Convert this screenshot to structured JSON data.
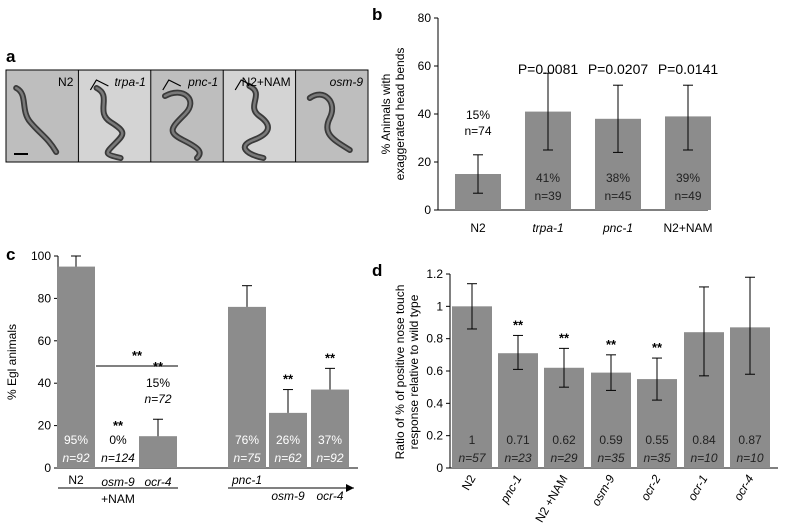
{
  "panel_a": {
    "letter": "a",
    "labels": [
      "N2",
      "trpa-1",
      "pnc-1",
      "N2+NAM",
      "osm-9"
    ],
    "italic": [
      false,
      true,
      true,
      false,
      true
    ]
  },
  "chart_data": [
    {
      "panel": "b",
      "type": "bar",
      "ylabel": "% Animals with exaggerated head bends",
      "ylabel_lines": [
        "% Animals with",
        "exaggerated head bends"
      ],
      "ylim": [
        0,
        80
      ],
      "yticks": [
        0,
        20,
        40,
        60,
        80
      ],
      "categories": [
        "N2",
        "trpa-1",
        "pnc-1",
        "N2+NAM"
      ],
      "italic": [
        false,
        true,
        true,
        false
      ],
      "values": [
        15,
        41,
        38,
        39
      ],
      "err_low": [
        7,
        25,
        24,
        25
      ],
      "err_high": [
        23,
        57,
        52,
        52
      ],
      "labels_pct": [
        "15%",
        "41%",
        "38%",
        "39%"
      ],
      "labels_n": [
        "n=74",
        "n=39",
        "n=45",
        "n=49"
      ],
      "label_inside": [
        false,
        true,
        true,
        true
      ],
      "pvalues": [
        "",
        "P=0.0081",
        "P=0.0207",
        "P=0.0141"
      ]
    },
    {
      "panel": "c",
      "type": "bar",
      "ylabel": "% Egl animals",
      "ylim": [
        0,
        100
      ],
      "yticks": [
        0,
        20,
        40,
        60,
        80,
        100
      ],
      "categories": [
        "N2",
        "osm-9",
        "ocr-4",
        "pnc-1",
        "osm-9",
        "ocr-4"
      ],
      "italic": [
        false,
        true,
        true,
        true,
        true,
        true
      ],
      "values": [
        95,
        0,
        15,
        76,
        26,
        37
      ],
      "err_low": [
        null,
        null,
        null,
        null,
        null,
        null
      ],
      "err_high": [
        100,
        null,
        23,
        86,
        37,
        47
      ],
      "labels_pct": [
        "95%",
        "0%",
        "15%",
        "76%",
        "26%",
        "37%"
      ],
      "labels_n": [
        "n=92",
        "n=124",
        "n=72",
        "n=75",
        "n=62",
        "n=92"
      ],
      "label_inside": [
        true,
        false,
        false,
        true,
        true,
        true
      ],
      "stars": [
        "",
        "**",
        "**",
        "",
        "**",
        "**"
      ],
      "bracket_stars": "**",
      "group_label": "+NAM"
    },
    {
      "panel": "d",
      "type": "bar",
      "ylabel": "Ratio of % of positive nose touch response relative to wild type",
      "ylabel_lines": [
        "Ratio of % of positive nose touch",
        "response relative to wild type"
      ],
      "ylim": [
        0,
        1.2
      ],
      "yticks": [
        0,
        0.2,
        0.4,
        0.6,
        0.8,
        1,
        1.2
      ],
      "ytick_labels": [
        "0",
        "0.2",
        "0.4",
        "0.6",
        "0.8",
        "1",
        "1.2"
      ],
      "categories": [
        "N2",
        "pnc-1",
        "N2 +NAM",
        "osm-9",
        "ocr-2",
        "ocr-1",
        "ocr-4"
      ],
      "italic": [
        false,
        true,
        false,
        true,
        true,
        true,
        true
      ],
      "values": [
        1,
        0.71,
        0.62,
        0.59,
        0.55,
        0.84,
        0.87
      ],
      "err_low": [
        0.86,
        0.61,
        0.5,
        0.48,
        0.42,
        0.57,
        0.58
      ],
      "err_high": [
        1.14,
        0.82,
        0.74,
        0.7,
        0.68,
        1.12,
        1.18
      ],
      "labels_val": [
        "1",
        "0.71",
        "0.62",
        "0.59",
        "0.55",
        "0.84",
        "0.87"
      ],
      "labels_n": [
        "n=57",
        "n=23",
        "n=29",
        "n=35",
        "n=35",
        "n=10",
        "n=10"
      ],
      "stars": [
        "",
        "**",
        "**",
        "**",
        "**",
        "",
        ""
      ]
    }
  ],
  "colors": {
    "bar": "#8c8c8c",
    "label_inside": "#ffffff",
    "axis": "#000000"
  }
}
